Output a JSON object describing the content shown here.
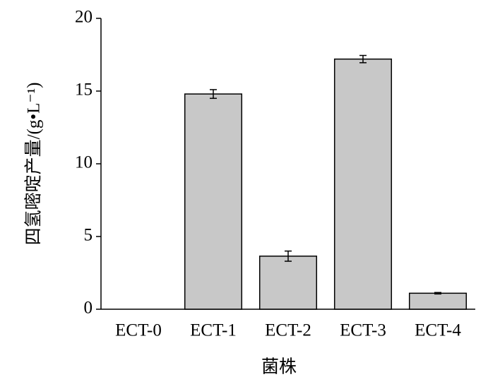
{
  "chart_data": {
    "type": "bar",
    "ylabel": "四氢嘧啶产量/(g•L⁻¹)",
    "xlabel": "菌株",
    "categories": [
      "ECT-0",
      "ECT-1",
      "ECT-2",
      "ECT-3",
      "ECT-4"
    ],
    "values": [
      0,
      14.8,
      3.65,
      17.2,
      1.1
    ],
    "errors": [
      null,
      0.3,
      0.35,
      0.25,
      0.05
    ],
    "color": "#c8c8c8",
    "ylim": [
      0,
      20
    ],
    "yticks": [
      0,
      5,
      10,
      15,
      20
    ],
    "grid": false
  }
}
